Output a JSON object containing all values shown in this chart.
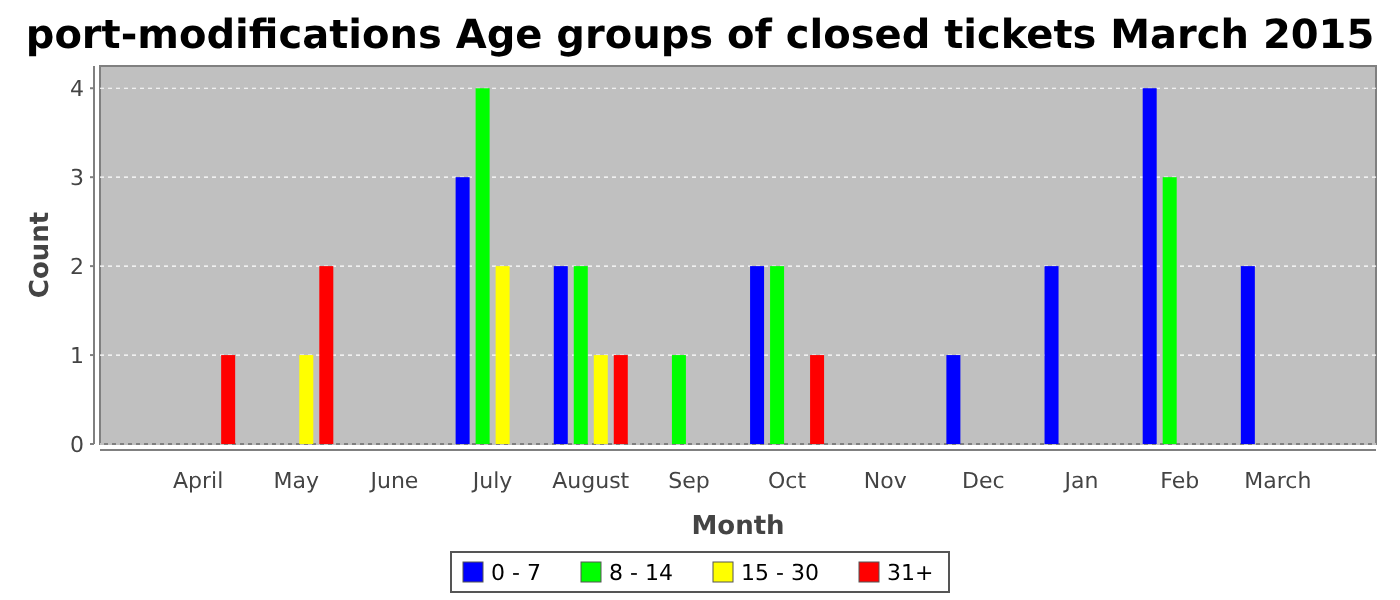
{
  "chart_data": {
    "type": "bar",
    "title": "port-modifications Age groups of closed tickets March 2015",
    "xlabel": "Month",
    "ylabel": "Count",
    "categories": [
      "April",
      "May",
      "June",
      "July",
      "August",
      "Sep",
      "Oct",
      "Nov",
      "Dec",
      "Jan",
      "Feb",
      "March"
    ],
    "series": [
      {
        "name": "0 - 7",
        "color": "#0000ff",
        "values": [
          0,
          0,
          0,
          3,
          2,
          0,
          2,
          0,
          1,
          2,
          4,
          2
        ]
      },
      {
        "name": "8 - 14",
        "color": "#00ff00",
        "values": [
          0,
          0,
          0,
          4,
          2,
          1,
          2,
          0,
          0,
          0,
          3,
          0
        ]
      },
      {
        "name": "15 - 30",
        "color": "#ffff00",
        "values": [
          0,
          1,
          0,
          2,
          1,
          0,
          0,
          0,
          0,
          0,
          0,
          0
        ]
      },
      {
        "name": "31+",
        "color": "#ff0000",
        "values": [
          1,
          2,
          0,
          0,
          1,
          0,
          1,
          0,
          0,
          0,
          0,
          0
        ]
      }
    ],
    "ylim": [
      0,
      4.25
    ],
    "yticks": [
      0,
      1,
      2,
      3,
      4
    ],
    "grid": "y",
    "legend": "bottom"
  }
}
